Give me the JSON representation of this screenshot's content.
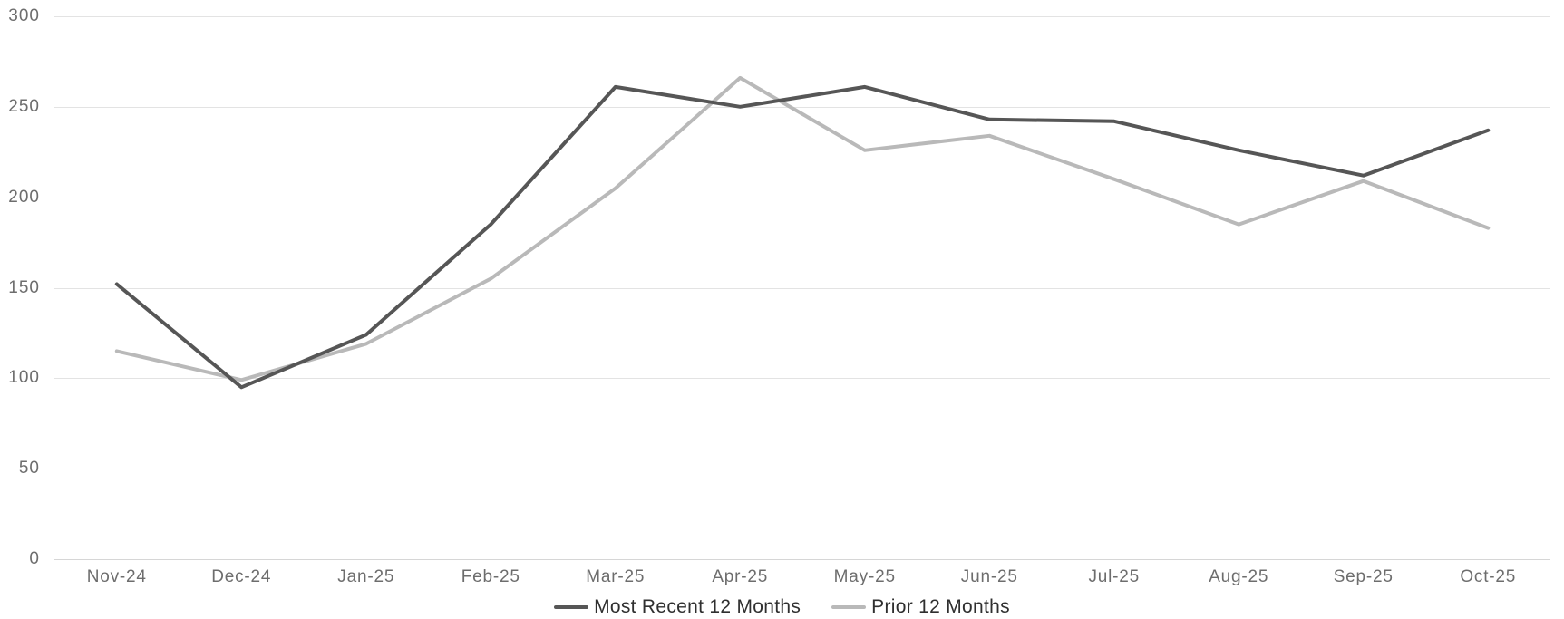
{
  "chart_data": {
    "type": "line",
    "title": "",
    "xlabel": "",
    "ylabel": "",
    "categories": [
      "Nov-24",
      "Dec-24",
      "Jan-25",
      "Feb-25",
      "Mar-25",
      "Apr-25",
      "May-25",
      "Jun-25",
      "Jul-25",
      "Aug-25",
      "Sep-25",
      "Oct-25"
    ],
    "series": [
      {
        "name": "Most Recent 12 Months",
        "color": "#565656",
        "values": [
          152,
          95,
          124,
          185,
          261,
          250,
          261,
          243,
          242,
          226,
          212,
          237
        ]
      },
      {
        "name": "Prior 12 Months",
        "color": "#b9b9b9",
        "values": [
          115,
          99,
          119,
          155,
          205,
          266,
          226,
          234,
          210,
          185,
          209,
          183
        ]
      }
    ],
    "ylim": [
      0,
      300
    ],
    "y_ticks": [
      300,
      250,
      200,
      150,
      100,
      50,
      0
    ],
    "grid": "horizontal",
    "legend_position": "bottom-center",
    "colors": {
      "background": "#ffffff",
      "gridline": "#e3e3e3",
      "zero_line": "#d6d6d6",
      "axis_text": "#6d6d6d",
      "legend_text": "#2f2f2f"
    }
  }
}
